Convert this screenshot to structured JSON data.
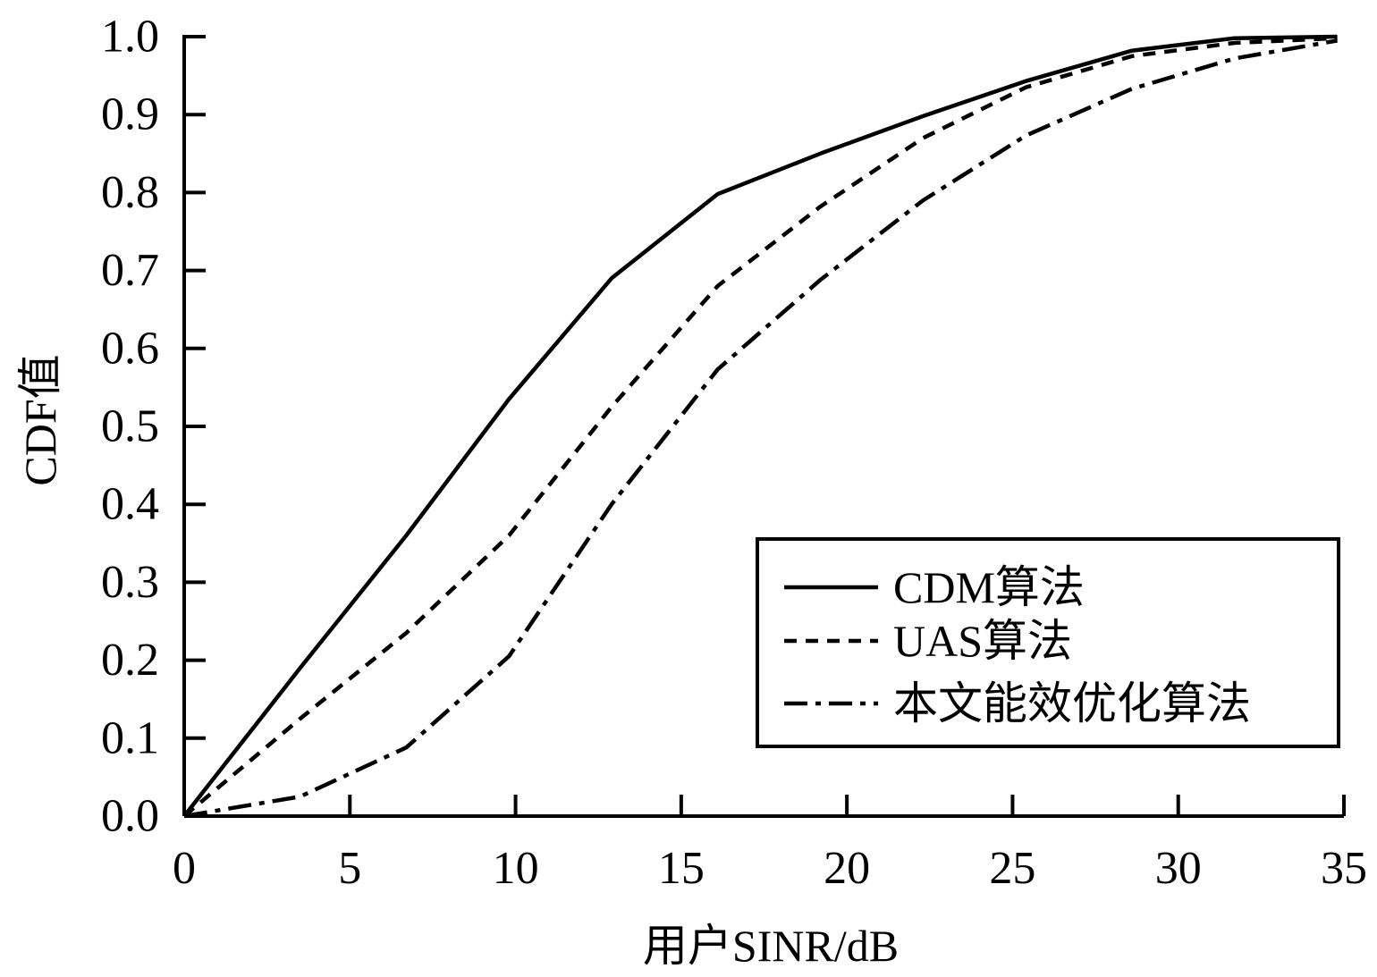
{
  "chart_data": {
    "type": "line",
    "xlabel": "用户SINR/dB",
    "ylabel": "CDF值",
    "xlim": [
      0,
      35
    ],
    "ylim": [
      0,
      1.0
    ],
    "xticks": [
      0,
      5,
      10,
      15,
      20,
      25,
      30,
      35
    ],
    "xtick_labels": [
      "0",
      "5",
      "10",
      "15",
      "20",
      "25",
      "30",
      "35"
    ],
    "yticks": [
      0,
      0.1,
      0.2,
      0.3,
      0.4,
      0.5,
      0.6,
      0.7,
      0.8,
      0.9,
      1.0
    ],
    "ytick_labels": [
      "0.0",
      "0.1",
      "0.2",
      "0.3",
      "0.4",
      "0.5",
      "0.6",
      "0.7",
      "0.8",
      "0.9",
      "1.0"
    ],
    "grid": false,
    "legend_position": "bottom-right",
    "series": [
      {
        "name": "CDM算法",
        "style": "solid",
        "color": "#000000",
        "x": [
          0,
          3.5,
          6.7,
          9.8,
          12.9,
          16.1,
          19.2,
          22.3,
          25.4,
          28.6,
          31.7,
          34.8
        ],
        "y": [
          0,
          0.19,
          0.36,
          0.535,
          0.69,
          0.798,
          0.85,
          0.898,
          0.943,
          0.982,
          0.998,
          1.0
        ]
      },
      {
        "name": "UAS算法",
        "style": "dashed",
        "color": "#000000",
        "x": [
          0,
          3.5,
          6.7,
          9.8,
          12.9,
          16.1,
          19.2,
          22.3,
          25.4,
          28.6,
          31.7,
          34.8
        ],
        "y": [
          0,
          0.125,
          0.235,
          0.36,
          0.525,
          0.68,
          0.782,
          0.87,
          0.935,
          0.975,
          0.992,
          0.998
        ]
      },
      {
        "name": "本文能效优化算法",
        "style": "dashdot",
        "color": "#000000",
        "x": [
          0,
          3.5,
          6.7,
          9.8,
          12.9,
          16.1,
          19.2,
          22.3,
          25.4,
          28.6,
          31.7,
          34.8
        ],
        "y": [
          0,
          0.025,
          0.088,
          0.205,
          0.4,
          0.573,
          0.688,
          0.79,
          0.873,
          0.933,
          0.972,
          0.995
        ]
      }
    ]
  }
}
